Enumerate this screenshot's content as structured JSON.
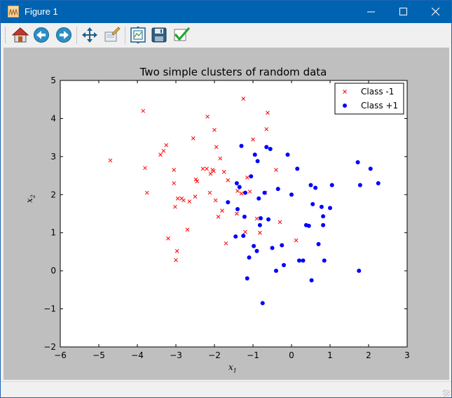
{
  "window": {
    "title": "Figure 1"
  },
  "toolbar": {
    "buttons": [
      {
        "name": "home-button",
        "icon": "home-icon"
      },
      {
        "name": "back-button",
        "icon": "back-arrow-icon"
      },
      {
        "name": "forward-button",
        "icon": "forward-arrow-icon"
      },
      {
        "name": "pan-button",
        "icon": "move-icon"
      },
      {
        "name": "zoom-button",
        "icon": "zoom-rect-icon"
      },
      {
        "name": "configure-subplots-button",
        "icon": "subplots-icon"
      },
      {
        "name": "save-button",
        "icon": "floppy-disk-icon"
      },
      {
        "name": "edit-parameters-button",
        "icon": "checkmark-icon"
      }
    ]
  },
  "colors": {
    "titlebar": "#0063b1",
    "canvas": "#bfbfbf",
    "class_neg": "#ff0000",
    "class_pos": "#0000ff"
  },
  "chart_data": {
    "type": "scatter",
    "title": "Two simple clusters of random data",
    "xlabel": "x",
    "xlabel_sub": "1",
    "ylabel": "x",
    "ylabel_sub": "2",
    "xlim": [
      -6,
      3
    ],
    "ylim": [
      -2,
      5
    ],
    "xticks": [
      "−6",
      "−5",
      "−4",
      "−3",
      "−2",
      "−1",
      "0",
      "1",
      "2",
      "3"
    ],
    "xtick_values": [
      -6,
      -5,
      -4,
      -3,
      -2,
      -1,
      0,
      1,
      2,
      3
    ],
    "yticks": [
      "−2",
      "−1",
      "0",
      "1",
      "2",
      "3",
      "4",
      "5"
    ],
    "ytick_values": [
      -2,
      -1,
      0,
      1,
      2,
      3,
      4,
      5
    ],
    "grid": false,
    "legend_position": "top-right",
    "series": [
      {
        "name": "Class -1",
        "marker": "x",
        "color": "#ff0000",
        "x": [
          -4.7,
          -3.85,
          -3.8,
          -3.75,
          -3.4,
          -3.32,
          -3.25,
          -3.2,
          -3.05,
          -3.05,
          -3.02,
          -3.0,
          -2.97,
          -2.95,
          -2.85,
          -2.8,
          -2.7,
          -2.65,
          -2.55,
          -2.5,
          -2.48,
          -2.45,
          -2.3,
          -2.2,
          -2.18,
          -2.12,
          -2.1,
          -2.05,
          -2.02,
          -2.0,
          -1.97,
          -1.95,
          -1.9,
          -1.85,
          -1.8,
          -1.75,
          -1.7,
          -1.65,
          -1.42,
          -1.4,
          -1.3,
          -1.25,
          -1.2,
          -1.15,
          -1.08,
          -1.0,
          -0.9,
          -0.82,
          -0.68,
          -0.65,
          -0.62,
          -0.4,
          -0.3,
          0.12
        ],
        "y": [
          2.9,
          4.2,
          2.7,
          2.05,
          3.05,
          3.15,
          3.3,
          0.85,
          2.65,
          2.3,
          1.68,
          0.28,
          0.52,
          1.9,
          1.9,
          1.85,
          1.08,
          1.82,
          3.48,
          1.95,
          2.4,
          2.35,
          2.68,
          2.68,
          4.05,
          2.05,
          2.55,
          2.65,
          2.62,
          3.7,
          1.85,
          3.25,
          1.42,
          2.95,
          1.58,
          2.6,
          0.72,
          2.38,
          1.5,
          2.1,
          2.03,
          4.52,
          1.02,
          2.45,
          2.08,
          3.45,
          1.37,
          1.0,
          2.05,
          3.72,
          4.15,
          2.65,
          1.28,
          0.8
        ]
      },
      {
        "name": "Class +1",
        "marker": "o",
        "color": "#0000ff",
        "x": [
          -1.65,
          -1.45,
          -1.42,
          -1.4,
          -1.35,
          -1.3,
          -1.25,
          -1.22,
          -1.2,
          -1.15,
          -1.1,
          -1.05,
          -0.98,
          -0.95,
          -0.9,
          -0.88,
          -0.85,
          -0.82,
          -0.8,
          -0.75,
          -0.7,
          -0.65,
          -0.6,
          -0.55,
          -0.5,
          -0.4,
          -0.35,
          -0.25,
          -0.2,
          -0.1,
          0.0,
          0.15,
          0.2,
          0.3,
          0.38,
          0.45,
          0.5,
          0.52,
          0.55,
          0.62,
          0.7,
          0.78,
          0.82,
          0.82,
          0.85,
          1.0,
          1.05,
          1.72,
          1.75,
          1.78,
          2.05,
          2.25
        ],
        "y": [
          1.8,
          0.9,
          2.3,
          1.62,
          2.2,
          3.28,
          0.92,
          1.42,
          2.05,
          -0.2,
          0.35,
          2.48,
          0.65,
          3.05,
          0.52,
          2.88,
          1.9,
          1.2,
          1.38,
          -0.85,
          2.05,
          3.25,
          1.35,
          3.2,
          0.6,
          0.0,
          2.15,
          0.67,
          0.15,
          3.05,
          2.0,
          2.68,
          0.27,
          0.27,
          1.2,
          1.18,
          2.25,
          -0.25,
          1.75,
          2.18,
          0.7,
          1.68,
          1.43,
          1.2,
          0.27,
          1.65,
          2.25,
          2.85,
          0.0,
          2.25,
          2.68,
          2.3
        ]
      }
    ]
  }
}
